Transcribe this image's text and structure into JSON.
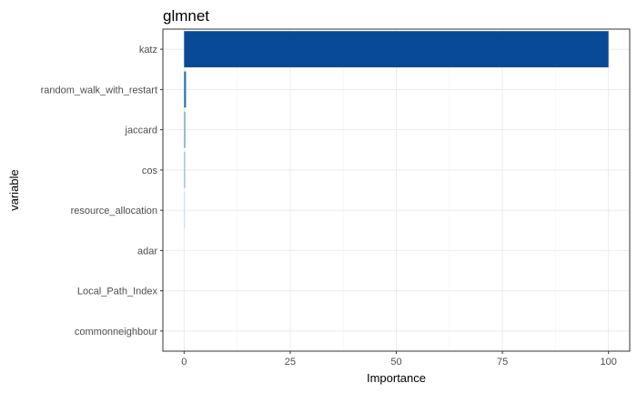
{
  "chart_data": {
    "type": "bar",
    "orientation": "horizontal",
    "title": "glmnet",
    "xlabel": "Importance",
    "ylabel": "variable",
    "categories": [
      "katz",
      "random_walk_with_restart",
      "jaccard",
      "cos",
      "resource_allocation",
      "adar",
      "Local_Path_Index",
      "commonneighbour"
    ],
    "values": [
      100,
      0.45,
      0.3,
      0.25,
      0.2,
      0,
      0,
      0
    ],
    "bar_colors": [
      "#084A97",
      "#2470AB",
      "#6DA5C8",
      "#8DBCD8",
      "#C7DDEE",
      "#DEEBF7",
      "#DEEBF7",
      "#DEEBF7"
    ],
    "xlim": [
      -5,
      105
    ],
    "xticks": [
      0,
      25,
      50,
      75,
      100
    ],
    "xtick_labels": [
      "0",
      "25",
      "50",
      "75",
      "100"
    ],
    "grid": true,
    "legend": "none"
  }
}
